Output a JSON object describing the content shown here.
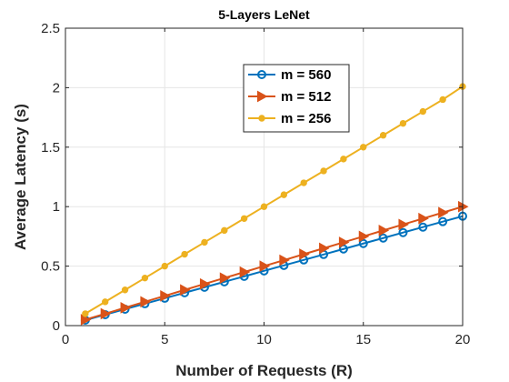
{
  "chart_data": {
    "type": "line",
    "title": "5-Layers LeNet",
    "xlabel": "Number of Requests (R)",
    "ylabel": "Average Latency (s)",
    "xlim": [
      0,
      20
    ],
    "ylim": [
      0,
      2.5
    ],
    "xticks": [
      0,
      5,
      10,
      15,
      20
    ],
    "yticks": [
      0,
      0.5,
      1,
      1.5,
      2,
      2.5
    ],
    "xtick_labels": [
      "0",
      "5",
      "10",
      "15",
      "20"
    ],
    "ytick_labels": [
      "0",
      "0.5",
      "1",
      "1.5",
      "2",
      "2.5"
    ],
    "grid": true,
    "legend_position": "upper center-right",
    "x": [
      1,
      2,
      3,
      4,
      5,
      6,
      7,
      8,
      9,
      10,
      11,
      12,
      13,
      14,
      15,
      16,
      17,
      18,
      19,
      20
    ],
    "series": [
      {
        "name": "m = 560",
        "color": "#0072BD",
        "marker": "circle",
        "values": [
          0.046,
          0.092,
          0.138,
          0.184,
          0.23,
          0.276,
          0.322,
          0.368,
          0.414,
          0.46,
          0.506,
          0.552,
          0.598,
          0.644,
          0.69,
          0.736,
          0.782,
          0.828,
          0.874,
          0.92
        ]
      },
      {
        "name": "m = 512",
        "color": "#D95319",
        "marker": "triangle-right",
        "values": [
          0.05,
          0.1,
          0.15,
          0.2,
          0.25,
          0.3,
          0.35,
          0.4,
          0.45,
          0.5,
          0.55,
          0.6,
          0.65,
          0.7,
          0.75,
          0.8,
          0.85,
          0.9,
          0.95,
          1.0
        ]
      },
      {
        "name": "m = 256",
        "color": "#EDB120",
        "marker": "dot",
        "values": [
          0.1,
          0.2,
          0.3,
          0.4,
          0.5,
          0.6,
          0.7,
          0.8,
          0.9,
          1.0,
          1.1,
          1.2,
          1.3,
          1.4,
          1.5,
          1.6,
          1.7,
          1.8,
          1.9,
          2.01
        ]
      }
    ]
  }
}
